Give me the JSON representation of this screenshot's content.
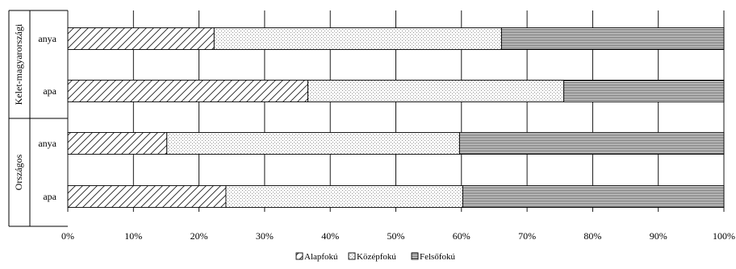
{
  "chart_data": {
    "type": "bar",
    "orientation": "horizontal",
    "stacked": "100%",
    "groups": [
      {
        "label": "Kelet-magyarországi",
        "rows": [
          "anya",
          "apa"
        ]
      },
      {
        "label": "Országos",
        "rows": [
          "anya",
          "apa"
        ]
      }
    ],
    "categories": [
      "Kelet-magyarországi anya",
      "Kelet-magyarországi apa",
      "Országos anya",
      "Országos apa"
    ],
    "series": [
      {
        "name": "Alapfokú",
        "values": [
          22.3,
          36.6,
          15.1,
          24.1
        ],
        "pattern": "diagonal-hatch"
      },
      {
        "name": "Középfokú",
        "values": [
          43.8,
          39.0,
          44.6,
          36.1
        ],
        "pattern": "dots"
      },
      {
        "name": "Felsőfokú",
        "values": [
          33.9,
          24.4,
          40.3,
          39.8
        ],
        "pattern": "horizontal-lines"
      }
    ],
    "x_ticks": [
      "0%",
      "10%",
      "20%",
      "30%",
      "40%",
      "50%",
      "60%",
      "70%",
      "80%",
      "90%",
      "100%"
    ],
    "xlim": [
      0,
      100
    ],
    "grid": "vertical",
    "legend_position": "bottom"
  }
}
